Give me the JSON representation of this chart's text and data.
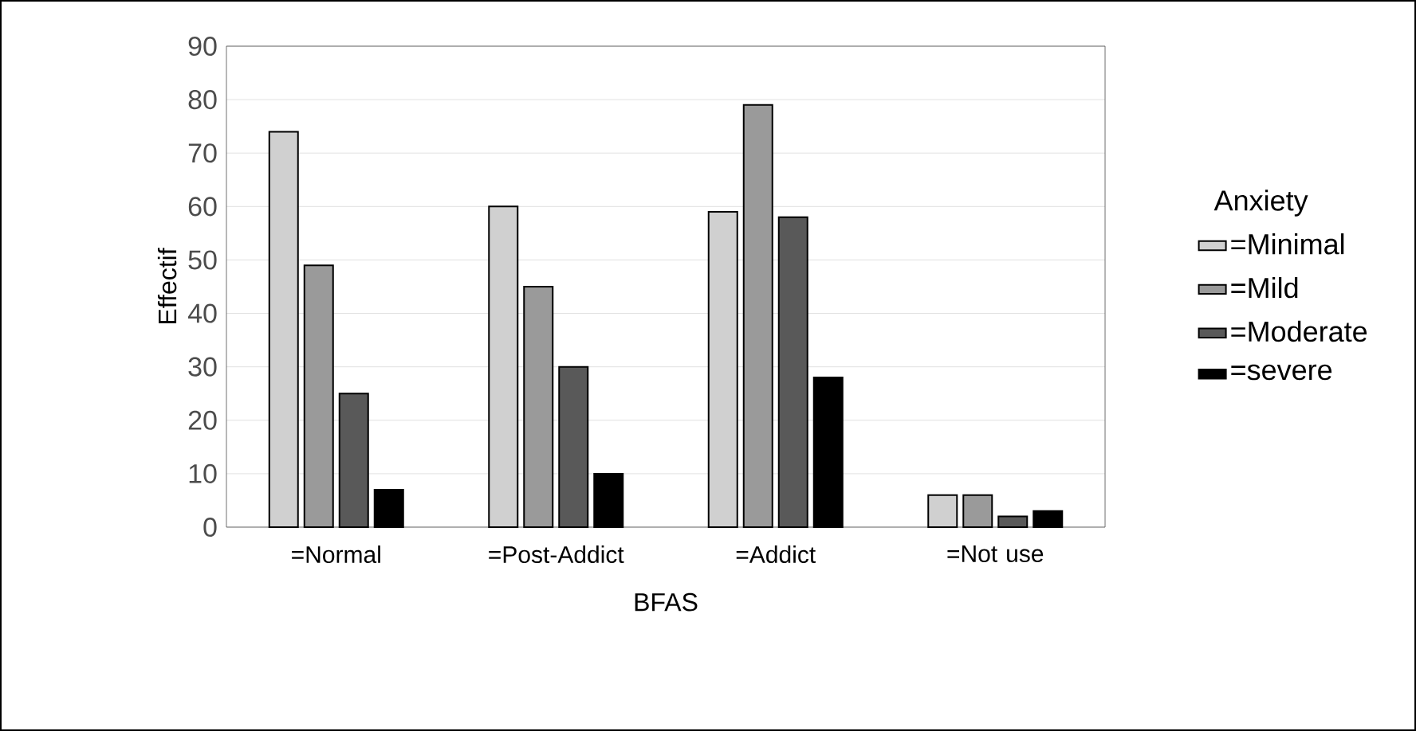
{
  "chart_data": {
    "type": "bar",
    "xlabel": "BFAS",
    "ylabel": "Effectif",
    "legend_title": "Anxiety",
    "categories": [
      "=Normal",
      "=Post-Addict",
      "=Addict",
      "=Not use"
    ],
    "series": [
      {
        "name": "=Minimal",
        "color": "#d0d0d0",
        "values": [
          74,
          60,
          59,
          6
        ]
      },
      {
        "name": "=Mild",
        "color": "#9a9a9a",
        "values": [
          49,
          45,
          79,
          6
        ]
      },
      {
        "name": "=Moderate",
        "color": "#595959",
        "values": [
          25,
          30,
          58,
          2
        ]
      },
      {
        "name": "=severe",
        "color": "#000000",
        "values": [
          7,
          10,
          28,
          3
        ]
      }
    ],
    "ylim": [
      0,
      90
    ],
    "yticks": [
      0,
      10,
      20,
      30,
      40,
      50,
      60,
      70,
      80,
      90
    ],
    "grid": "y",
    "legend": "right"
  }
}
